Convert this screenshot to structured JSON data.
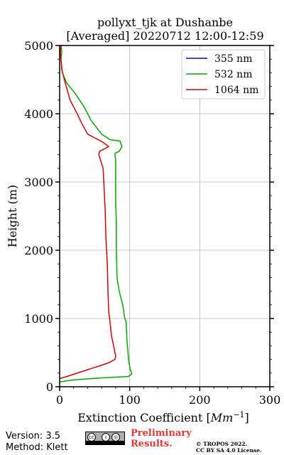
{
  "chart_data": {
    "type": "line",
    "title_line1": "pollyxt_tjk at Dushanbe",
    "title_line2": "[Averaged] 20220712 12:00-12:59",
    "xlabel_text": "Extinction Coefficient [",
    "xlabel_unit": "Mm",
    "xlabel_exp": "−1",
    "xlabel_close": "]",
    "ylabel": "Height (m)",
    "xlim": [
      0,
      300
    ],
    "ylim": [
      0,
      5000
    ],
    "xticks": [
      0,
      100,
      200,
      300
    ],
    "yticks": [
      0,
      1000,
      2000,
      3000,
      4000,
      5000
    ],
    "xtick_labels": [
      "0",
      "100",
      "200",
      "300"
    ],
    "ytick_labels": [
      "0",
      "1000",
      "2000",
      "3000",
      "4000",
      "5000"
    ],
    "grid": true,
    "legend_position": "top-right",
    "series": [
      {
        "name": "355 nm",
        "color": "#0000ff",
        "points": []
      },
      {
        "name": "532 nm",
        "color": "#00aa00",
        "points": [
          [
            0,
            70
          ],
          [
            20,
            100
          ],
          [
            60,
            130
          ],
          [
            98,
            150
          ],
          [
            103,
            190
          ],
          [
            101,
            250
          ],
          [
            99,
            350
          ],
          [
            98,
            450
          ],
          [
            96,
            700
          ],
          [
            95,
            950
          ],
          [
            93,
            1000
          ],
          [
            90,
            1200
          ],
          [
            85,
            1400
          ],
          [
            82,
            1600
          ],
          [
            81,
            2000
          ],
          [
            81,
            2400
          ],
          [
            80,
            2700
          ],
          [
            80,
            3000
          ],
          [
            80,
            3300
          ],
          [
            79,
            3420
          ],
          [
            85,
            3450
          ],
          [
            89,
            3520
          ],
          [
            86,
            3600
          ],
          [
            72,
            3620
          ],
          [
            60,
            3700
          ],
          [
            45,
            3900
          ],
          [
            35,
            4100
          ],
          [
            22,
            4300
          ],
          [
            10,
            4450
          ],
          [
            4,
            4600
          ],
          [
            2,
            4800
          ],
          [
            3,
            4900
          ],
          [
            2,
            5000
          ]
        ]
      },
      {
        "name": "1064 nm",
        "color": "#dd0000",
        "points": [
          [
            0,
            120
          ],
          [
            10,
            150
          ],
          [
            40,
            250
          ],
          [
            70,
            350
          ],
          [
            79,
            400
          ],
          [
            80,
            450
          ],
          [
            78,
            550
          ],
          [
            76,
            650
          ],
          [
            74,
            750
          ],
          [
            72,
            950
          ],
          [
            70,
            1100
          ],
          [
            69,
            1400
          ],
          [
            68,
            1800
          ],
          [
            66,
            2200
          ],
          [
            65,
            2600
          ],
          [
            63,
            3000
          ],
          [
            62,
            3200
          ],
          [
            56,
            3400
          ],
          [
            57,
            3450
          ],
          [
            63,
            3480
          ],
          [
            70,
            3520
          ],
          [
            62,
            3580
          ],
          [
            55,
            3620
          ],
          [
            40,
            3700
          ],
          [
            32,
            3850
          ],
          [
            25,
            4000
          ],
          [
            15,
            4200
          ],
          [
            8,
            4450
          ],
          [
            3,
            4650
          ],
          [
            1,
            4900
          ],
          [
            2,
            5000
          ]
        ]
      }
    ]
  },
  "footer": {
    "version": "Version: 3.5",
    "method": "Method: Klett",
    "preliminary_line1": "Preliminary",
    "preliminary_line2": "Results.",
    "copyright_line1": "© TROPOS 2022.",
    "copyright_line2": "CC BY SA 4.0 License."
  }
}
